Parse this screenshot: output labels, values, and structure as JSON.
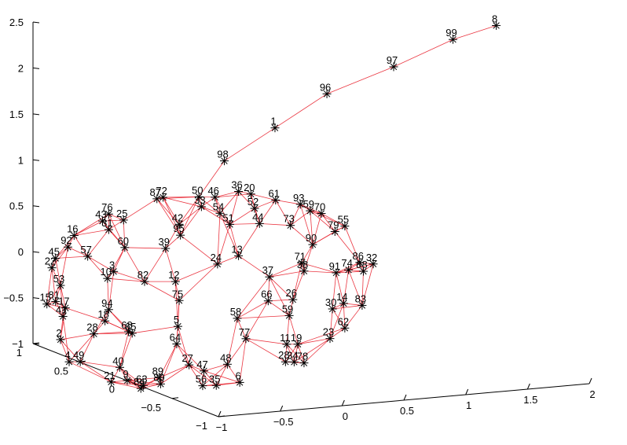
{
  "chart_data": {
    "type": "scatter",
    "title": "",
    "xlabel": "",
    "ylabel": "",
    "zlabel": "",
    "grid": false,
    "colors": {
      "edges": "#e8202c",
      "markers": "#000000",
      "axes": "#000000"
    },
    "axes": {
      "x": {
        "range": [
          -1,
          2
        ],
        "ticks": [
          "−1",
          "−0.5",
          "0",
          "0.5",
          "1",
          "1.5",
          "2"
        ]
      },
      "y": {
        "range": [
          -1,
          1
        ],
        "ticks": [
          "−1",
          "−0.5",
          "0",
          "0.5",
          "1"
        ]
      },
      "z": {
        "range": [
          -1,
          2.5
        ],
        "ticks": [
          "−1",
          "−0.5",
          "0",
          "0.5",
          "1",
          "1.5",
          "2",
          "2.5"
        ]
      }
    },
    "tail_path": [
      "50",
      "98",
      "1",
      "96",
      "97",
      "99",
      "8"
    ],
    "tail_nodes": [
      {
        "id": "98",
        "x": 0.06,
        "y": 0.35,
        "z": 1.12
      },
      {
        "id": "1",
        "x": 0.47,
        "y": 0.35,
        "z": 1.43
      },
      {
        "id": "96",
        "x": 0.89,
        "y": 0.35,
        "z": 1.75
      },
      {
        "id": "97",
        "x": 1.43,
        "y": 0.35,
        "z": 1.98
      },
      {
        "id": "99",
        "x": 1.91,
        "y": 0.35,
        "z": 2.22
      },
      {
        "id": "8",
        "x": 2.26,
        "y": 0.35,
        "z": 2.33
      }
    ],
    "nodes": [
      {
        "id": "87",
        "x": -0.65,
        "y": 0.13,
        "z": 0.88
      },
      {
        "id": "72",
        "x": -0.6,
        "y": 0.13,
        "z": 0.89
      },
      {
        "id": "50",
        "x": -0.37,
        "y": 0.05,
        "z": 0.9
      },
      {
        "id": "46",
        "x": -0.24,
        "y": 0.05,
        "z": 0.88
      },
      {
        "id": "36",
        "x": -0.05,
        "y": 0.05,
        "z": 0.92
      },
      {
        "id": "20",
        "x": 0.05,
        "y": 0.05,
        "z": 0.88
      },
      {
        "id": "33",
        "x": -0.35,
        "y": 0.05,
        "z": 0.79
      },
      {
        "id": "61",
        "x": 0.25,
        "y": 0.05,
        "z": 0.79
      },
      {
        "id": "52",
        "x": 0.08,
        "y": 0.05,
        "z": 0.72
      },
      {
        "id": "93",
        "x": 0.45,
        "y": 0.05,
        "z": 0.72
      },
      {
        "id": "54",
        "x": -0.2,
        "y": 0.05,
        "z": 0.7
      },
      {
        "id": "42",
        "x": -0.53,
        "y": 0.05,
        "z": 0.62
      },
      {
        "id": "51",
        "x": -0.12,
        "y": 0.05,
        "z": 0.57
      },
      {
        "id": "44",
        "x": 0.12,
        "y": 0.05,
        "z": 0.55
      },
      {
        "id": "59",
        "x": 0.53,
        "y": 0.05,
        "z": 0.64
      },
      {
        "id": "70",
        "x": 0.62,
        "y": 0.05,
        "z": 0.6
      },
      {
        "id": "73",
        "x": 0.37,
        "y": 0.05,
        "z": 0.5
      },
      {
        "id": "95",
        "x": -0.52,
        "y": 0.05,
        "z": 0.5
      },
      {
        "id": "55",
        "x": 0.81,
        "y": 0.05,
        "z": 0.44
      },
      {
        "id": "79",
        "x": 0.73,
        "y": 0.05,
        "z": 0.39
      },
      {
        "id": "39",
        "x": -0.64,
        "y": 0.05,
        "z": 0.37
      },
      {
        "id": "90",
        "x": 0.55,
        "y": 0.05,
        "z": 0.27
      },
      {
        "id": "24",
        "x": -0.22,
        "y": 0.05,
        "z": 0.15
      },
      {
        "id": "13",
        "x": -0.05,
        "y": 0.05,
        "z": 0.22
      },
      {
        "id": "71",
        "x": 0.46,
        "y": 0.05,
        "z": 0.08
      },
      {
        "id": "86",
        "x": 0.93,
        "y": 0.05,
        "z": 0.03
      },
      {
        "id": "32",
        "x": 1.04,
        "y": 0.05,
        "z": 0.0
      },
      {
        "id": "38",
        "x": 0.48,
        "y": 0.05,
        "z": -0.01
      },
      {
        "id": "74",
        "x": 0.84,
        "y": 0.05,
        "z": -0.04
      },
      {
        "id": "37",
        "x": 0.2,
        "y": 0.05,
        "z": -0.04
      },
      {
        "id": "91",
        "x": 0.74,
        "y": 0.05,
        "z": -0.06
      },
      {
        "id": "88",
        "x": 0.96,
        "y": 0.05,
        "z": -0.07
      },
      {
        "id": "12",
        "x": -0.56,
        "y": 0.05,
        "z": 0.0
      },
      {
        "id": "82",
        "x": -0.81,
        "y": 0.05,
        "z": 0.03
      },
      {
        "id": "75",
        "x": -0.53,
        "y": 0.05,
        "z": -0.21
      },
      {
        "id": "66",
        "x": 0.19,
        "y": 0.05,
        "z": -0.3
      },
      {
        "id": "26",
        "x": 0.39,
        "y": 0.05,
        "z": -0.31
      },
      {
        "id": "14",
        "x": 0.8,
        "y": 0.05,
        "z": -0.4
      },
      {
        "id": "30",
        "x": 0.71,
        "y": 0.05,
        "z": -0.45
      },
      {
        "id": "83",
        "x": 0.95,
        "y": 0.05,
        "z": -0.44
      },
      {
        "id": "58",
        "x": -0.06,
        "y": 0.05,
        "z": -0.46
      },
      {
        "id": "59b",
        "x": 0.36,
        "y": 0.05,
        "z": -0.48
      },
      {
        "id": "5",
        "x": -0.54,
        "y": 0.05,
        "z": -0.49
      },
      {
        "id": "64",
        "x": -0.55,
        "y": 0.05,
        "z": -0.68
      },
      {
        "id": "77",
        "x": 0.01,
        "y": 0.05,
        "z": -0.69
      },
      {
        "id": "62",
        "x": 0.81,
        "y": 0.05,
        "z": -0.67
      },
      {
        "id": "23",
        "x": 0.69,
        "y": 0.05,
        "z": -0.77
      },
      {
        "id": "11",
        "x": 0.34,
        "y": 0.05,
        "z": -0.79
      },
      {
        "id": "19",
        "x": 0.43,
        "y": 0.05,
        "z": -0.8
      },
      {
        "id": "27",
        "x": -0.45,
        "y": 0.05,
        "z": -0.92
      },
      {
        "id": "48",
        "x": -0.14,
        "y": 0.05,
        "z": -0.95
      },
      {
        "id": "47",
        "x": -0.33,
        "y": 0.05,
        "z": -1.0
      },
      {
        "id": "28",
        "x": 0.33,
        "y": 0.05,
        "z": -0.98
      },
      {
        "id": "34",
        "x": 0.4,
        "y": 0.05,
        "z": -0.99
      },
      {
        "id": "78",
        "x": 0.48,
        "y": 0.05,
        "z": -1.01
      },
      {
        "id": "6",
        "x": -0.04,
        "y": 0.05,
        "z": -1.16
      },
      {
        "id": "35",
        "x": -0.23,
        "y": 0.05,
        "z": -1.17
      },
      {
        "id": "56",
        "x": -0.34,
        "y": 0.05,
        "z": -1.16
      },
      {
        "id": "89",
        "x": -0.69,
        "y": 0.05,
        "z": -1.03
      },
      {
        "id": "80",
        "x": -0.68,
        "y": 0.05,
        "z": -1.1
      },
      {
        "id": "63",
        "x": -0.82,
        "y": 0.05,
        "z": -1.1
      },
      {
        "id": "84",
        "x": -0.84,
        "y": 0.05,
        "z": -1.13
      },
      {
        "id": "9",
        "x": -0.95,
        "y": 0.05,
        "z": -1.03
      },
      {
        "id": "21",
        "x": -1.08,
        "y": 0.05,
        "z": -1.03
      },
      {
        "id": "40",
        "x": -1.01,
        "y": 0.05,
        "z": -0.88
      },
      {
        "id": "65",
        "x": -0.91,
        "y": 0.05,
        "z": -0.52
      },
      {
        "id": "68",
        "x": -0.94,
        "y": 0.05,
        "z": -0.5
      },
      {
        "id": "28b",
        "x": -1.22,
        "y": 0.05,
        "z": -0.49
      },
      {
        "id": "18",
        "x": -1.13,
        "y": 0.05,
        "z": -0.36
      },
      {
        "id": "94",
        "x": -1.1,
        "y": 0.05,
        "z": -0.24
      },
      {
        "id": "49",
        "x": -1.33,
        "y": 0.05,
        "z": -0.78
      },
      {
        "id": "4",
        "x": -1.42,
        "y": 0.05,
        "z": -0.77
      },
      {
        "id": "2",
        "x": -1.49,
        "y": 0.05,
        "z": -0.52
      },
      {
        "id": "41",
        "x": -1.47,
        "y": 0.05,
        "z": -0.27
      },
      {
        "id": "17",
        "x": -1.45,
        "y": 0.05,
        "z": -0.18
      },
      {
        "id": "15",
        "x": -1.6,
        "y": 0.05,
        "z": -0.12
      },
      {
        "id": "81",
        "x": -1.53,
        "y": 0.05,
        "z": -0.1
      },
      {
        "id": "53",
        "x": -1.49,
        "y": 0.05,
        "z": 0.07
      },
      {
        "id": "10",
        "x": -1.11,
        "y": 0.05,
        "z": 0.1
      },
      {
        "id": "3",
        "x": -1.06,
        "y": 0.05,
        "z": 0.17
      },
      {
        "id": "22",
        "x": -1.56,
        "y": 0.05,
        "z": 0.27
      },
      {
        "id": "45",
        "x": -1.53,
        "y": 0.05,
        "z": 0.37
      },
      {
        "id": "57",
        "x": -1.27,
        "y": 0.05,
        "z": 0.36
      },
      {
        "id": "60",
        "x": -0.97,
        "y": 0.05,
        "z": 0.42
      },
      {
        "id": "92",
        "x": -1.43,
        "y": 0.05,
        "z": 0.48
      },
      {
        "id": "16",
        "x": -1.38,
        "y": 0.05,
        "z": 0.6
      },
      {
        "id": "31",
        "x": -1.1,
        "y": 0.05,
        "z": 0.63
      },
      {
        "id": "43",
        "x": -1.15,
        "y": 0.05,
        "z": 0.73
      },
      {
        "id": "76",
        "x": -1.1,
        "y": 0.05,
        "z": 0.8
      },
      {
        "id": "25",
        "x": -0.98,
        "y": 0.05,
        "z": 0.72
      }
    ]
  }
}
